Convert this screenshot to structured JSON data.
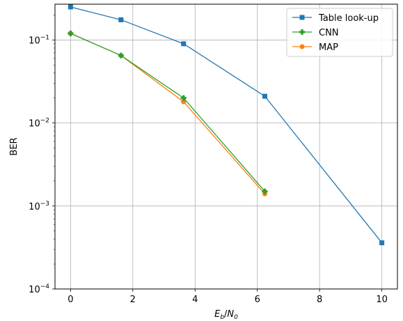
{
  "chart_data": {
    "type": "line",
    "title": "",
    "xlabel": "E_b/N_0",
    "xlabel_parts": {
      "base1": "E",
      "sub1": "b",
      "slash": "/",
      "base2": "N",
      "sub2": "0"
    },
    "ylabel": "BER",
    "xlim": [
      -0.5,
      10.5
    ],
    "ylim": [
      0.0001,
      0.27
    ],
    "yscale": "log",
    "grid": true,
    "legend_position": "top-right",
    "xticks": [
      0,
      2,
      4,
      6,
      8,
      10
    ],
    "xtick_labels": [
      "0",
      "2",
      "4",
      "6",
      "8",
      "10"
    ],
    "yticks": [
      0.0001,
      0.001,
      0.01,
      0.1
    ],
    "ytick_labels": [
      {
        "base": "10",
        "exp": "−4"
      },
      {
        "base": "10",
        "exp": "−3"
      },
      {
        "base": "10",
        "exp": "−2"
      },
      {
        "base": "10",
        "exp": "−1"
      }
    ],
    "series": [
      {
        "name": "Table look-up",
        "color": "#1f77b4",
        "marker": "square",
        "x": [
          0,
          1.62,
          3.63,
          6.24,
          10
        ],
        "y": [
          0.25,
          0.175,
          0.09,
          0.021,
          0.00036
        ]
      },
      {
        "name": "CNN",
        "color": "#2ca02c",
        "marker": "plus",
        "x": [
          0,
          1.62,
          3.63,
          6.24
        ],
        "y": [
          0.12,
          0.065,
          0.02,
          0.0015
        ]
      },
      {
        "name": "MAP",
        "color": "#ff7f0e",
        "marker": "circle",
        "x": [
          0,
          1.62,
          3.63,
          6.24
        ],
        "y": [
          0.12,
          0.065,
          0.018,
          0.0014
        ]
      }
    ]
  }
}
